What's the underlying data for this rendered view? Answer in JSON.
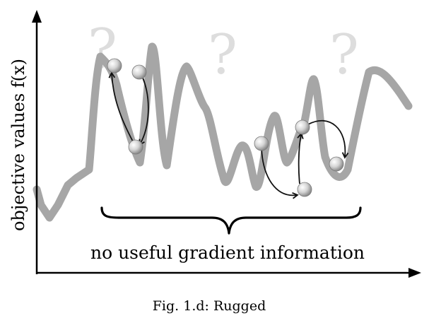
{
  "figure": {
    "ylabel": "objective values f(x)",
    "annotation": "no useful gradient information",
    "caption": "Fig. 1.d: Rugged",
    "question_marks": [
      "?",
      "?",
      "?"
    ]
  },
  "colors": {
    "curve": "#a6a6a6",
    "question_mark": "#dddddd",
    "axis": "#000000",
    "arrow": "#111111",
    "ball_light": "#ffffff",
    "ball_dark": "#8c8c8c"
  }
}
